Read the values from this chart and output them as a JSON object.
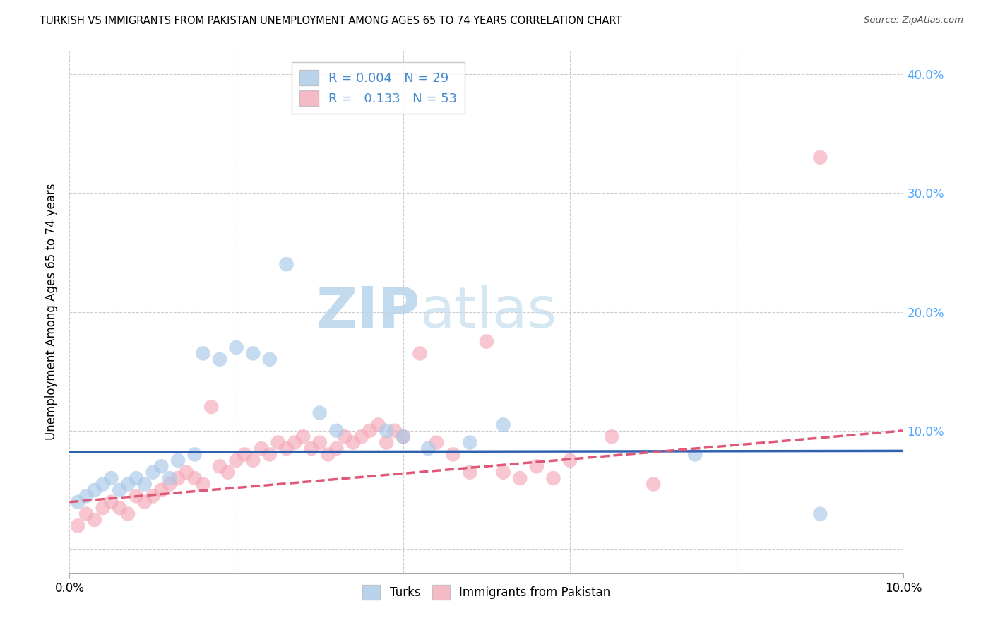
{
  "title": "TURKISH VS IMMIGRANTS FROM PAKISTAN UNEMPLOYMENT AMONG AGES 65 TO 74 YEARS CORRELATION CHART",
  "source": "Source: ZipAtlas.com",
  "ylabel": "Unemployment Among Ages 65 to 74 years",
  "turks_color": "#a8c8e8",
  "pakistan_color": "#f4a8b8",
  "turks_line_color": "#3060b0",
  "pakistan_line_color": "#e05878",
  "turks_line_style": "-",
  "pakistan_line_style": "--",
  "turks_R": 0.004,
  "turks_N": 29,
  "pakistan_R": 0.133,
  "pakistan_N": 53,
  "turks_x": [
    0.001,
    0.002,
    0.003,
    0.004,
    0.005,
    0.006,
    0.007,
    0.008,
    0.009,
    0.01,
    0.011,
    0.012,
    0.013,
    0.015,
    0.016,
    0.018,
    0.02,
    0.022,
    0.024,
    0.026,
    0.03,
    0.032,
    0.038,
    0.04,
    0.043,
    0.048,
    0.052,
    0.075,
    0.09
  ],
  "turks_y": [
    0.04,
    0.045,
    0.05,
    0.055,
    0.06,
    0.05,
    0.055,
    0.06,
    0.055,
    0.065,
    0.07,
    0.06,
    0.075,
    0.08,
    0.165,
    0.16,
    0.17,
    0.165,
    0.16,
    0.24,
    0.115,
    0.1,
    0.1,
    0.095,
    0.085,
    0.09,
    0.105,
    0.08,
    0.03
  ],
  "pakistan_x": [
    0.001,
    0.002,
    0.003,
    0.004,
    0.005,
    0.006,
    0.007,
    0.008,
    0.009,
    0.01,
    0.011,
    0.012,
    0.013,
    0.014,
    0.015,
    0.016,
    0.017,
    0.018,
    0.019,
    0.02,
    0.021,
    0.022,
    0.023,
    0.024,
    0.025,
    0.026,
    0.027,
    0.028,
    0.029,
    0.03,
    0.031,
    0.032,
    0.033,
    0.034,
    0.035,
    0.036,
    0.037,
    0.038,
    0.039,
    0.04,
    0.042,
    0.044,
    0.046,
    0.048,
    0.05,
    0.052,
    0.054,
    0.056,
    0.058,
    0.06,
    0.065,
    0.07,
    0.09
  ],
  "pakistan_y": [
    0.02,
    0.03,
    0.025,
    0.035,
    0.04,
    0.035,
    0.03,
    0.045,
    0.04,
    0.045,
    0.05,
    0.055,
    0.06,
    0.065,
    0.06,
    0.055,
    0.12,
    0.07,
    0.065,
    0.075,
    0.08,
    0.075,
    0.085,
    0.08,
    0.09,
    0.085,
    0.09,
    0.095,
    0.085,
    0.09,
    0.08,
    0.085,
    0.095,
    0.09,
    0.095,
    0.1,
    0.105,
    0.09,
    0.1,
    0.095,
    0.165,
    0.09,
    0.08,
    0.065,
    0.175,
    0.065,
    0.06,
    0.07,
    0.06,
    0.075,
    0.095,
    0.055,
    0.33
  ],
  "turks_trend_x": [
    0.0,
    0.1
  ],
  "turks_trend_y": [
    0.082,
    0.083
  ],
  "pakistan_trend_x": [
    0.0,
    0.1
  ],
  "pakistan_trend_y": [
    0.04,
    0.1
  ],
  "xlim": [
    0.0,
    0.1
  ],
  "ylim": [
    -0.02,
    0.42
  ],
  "right_yticks": [
    0.0,
    0.1,
    0.2,
    0.3,
    0.4
  ],
  "right_yticklabels": [
    "",
    "10.0%",
    "20.0%",
    "30.0%",
    "40.0%"
  ],
  "xtick_positions": [
    0.0,
    0.1
  ],
  "xtick_labels": [
    "0.0%",
    "10.0%"
  ],
  "background_color": "#ffffff",
  "watermark_zip": "ZIP",
  "watermark_atlas": "atlas",
  "watermark_color_zip": "#c5ddf0",
  "watermark_color_atlas": "#c5ddf0",
  "legend_text_color": "#4488cc",
  "right_tick_color": "#4da6ff",
  "line_width": 2.5,
  "scatter_size": 220
}
